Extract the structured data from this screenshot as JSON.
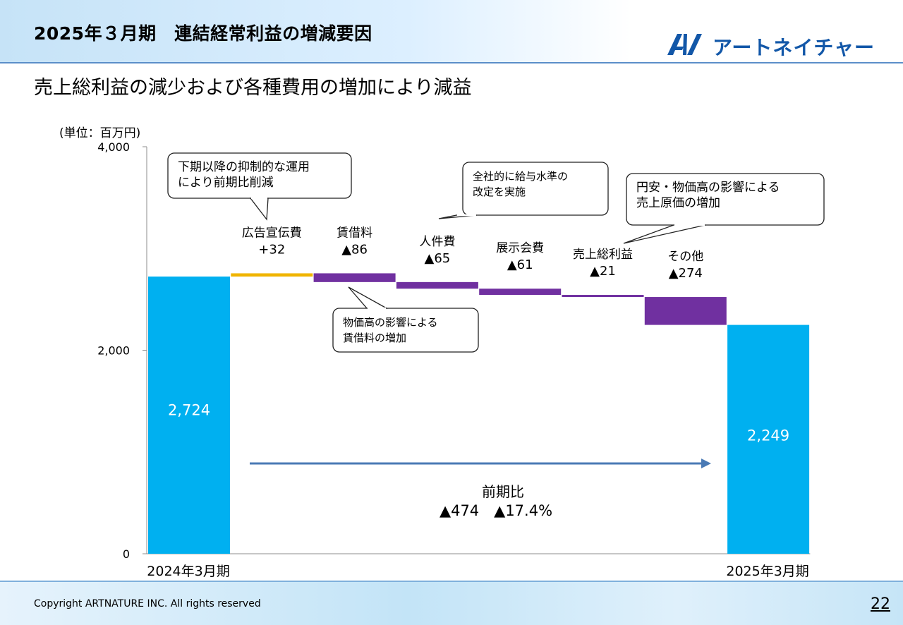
{
  "header": {
    "title": "2025年３月期　連結経常利益の増減要因",
    "logo_text": "アートネイチャー"
  },
  "subtitle": "売上総利益の減少および各種費用の増加により減益",
  "chart_data": {
    "type": "bar",
    "unit_label": "(単位：百万円)",
    "ylim": [
      0,
      4000
    ],
    "y_ticks": [
      {
        "value": 0,
        "label": "0"
      },
      {
        "value": 2000,
        "label": "2,000"
      },
      {
        "value": 4000,
        "label": "4,000"
      }
    ],
    "categories": [
      "2024年3月期",
      "広告宣伝費",
      "賃借料",
      "人件費",
      "展示会費",
      "売上総利益",
      "その他",
      "2025年3月期"
    ],
    "bars": [
      {
        "category": "2024年3月期",
        "kind": "total",
        "value": 2724,
        "color": "#00b0f0",
        "label": "2,724"
      },
      {
        "category": "広告宣伝費",
        "kind": "increase",
        "value": 32,
        "color": "#f0b400",
        "label_name": "広告宣伝費",
        "label_value": "+32"
      },
      {
        "category": "賃借料",
        "kind": "decrease",
        "value": -86,
        "color": "#7030a0",
        "label_name": "賃借料",
        "label_value": "▲86"
      },
      {
        "category": "人件費",
        "kind": "decrease",
        "value": -65,
        "color": "#7030a0",
        "label_name": "人件費",
        "label_value": "▲65"
      },
      {
        "category": "展示会費",
        "kind": "decrease",
        "value": -61,
        "color": "#7030a0",
        "label_name": "展示会費",
        "label_value": "▲61"
      },
      {
        "category": "売上総利益",
        "kind": "decrease",
        "value": -21,
        "color": "#7030a0",
        "label_name": "売上総利益",
        "label_value": "▲21"
      },
      {
        "category": "その他",
        "kind": "decrease",
        "value": -274,
        "color": "#7030a0",
        "label_name": "その他",
        "label_value": "▲274"
      },
      {
        "category": "2025年3月期",
        "kind": "total",
        "value": 2249,
        "color": "#00b0f0",
        "label": "2,249"
      }
    ],
    "x_labels": [
      {
        "category": "2024年3月期",
        "text": "2024年3月期"
      },
      {
        "category": "2025年3月期",
        "text": "2025年3月期"
      }
    ],
    "comparison": {
      "line1": "前期比",
      "line2": "▲474　▲17.4%"
    },
    "callouts": [
      {
        "id": "ad",
        "lines": [
          "下期以降の抑制的な運用",
          "により前期比削減"
        ]
      },
      {
        "id": "salary",
        "lines": [
          "全社的に給与水準の",
          "改定を実施"
        ]
      },
      {
        "id": "cost",
        "lines": [
          "円安・物価高の影響による",
          "売上原価の増加"
        ]
      },
      {
        "id": "rent",
        "lines": [
          "物価高の影響による",
          "賃借料の増加"
        ]
      }
    ]
  },
  "footer": {
    "copyright": "Copyright ARTNATURE INC. All rights reserved",
    "page": "22"
  }
}
